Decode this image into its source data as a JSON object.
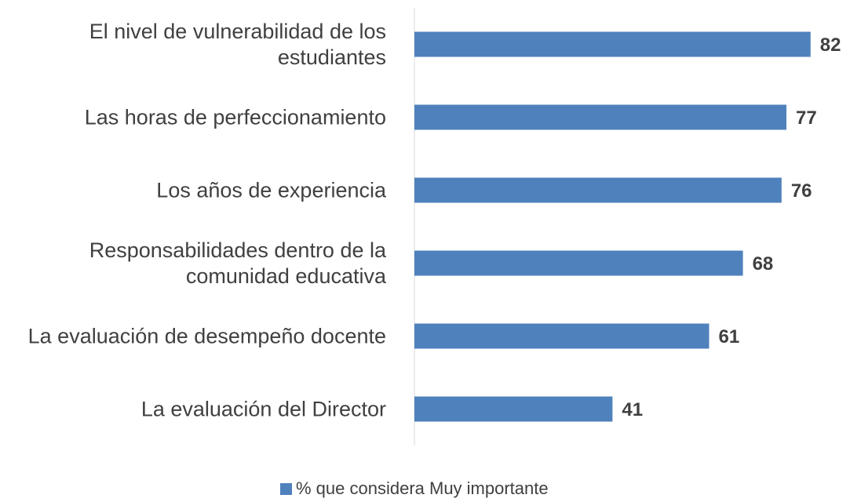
{
  "chart_data": {
    "type": "hbar",
    "categories": [
      "El nivel de vulnerabilidad de los estudiantes",
      "Las horas de perfeccionamiento",
      "Los años de experiencia",
      "Responsabilidades dentro de la comunidad educativa",
      "La evaluación de desempeño docente",
      "La evaluación del Director"
    ],
    "series": [
      {
        "name": "% que considera Muy importante",
        "color": "#4f81bd",
        "values": [
          82,
          77,
          76,
          68,
          61,
          41
        ]
      }
    ],
    "xlim": [
      0,
      90
    ]
  }
}
